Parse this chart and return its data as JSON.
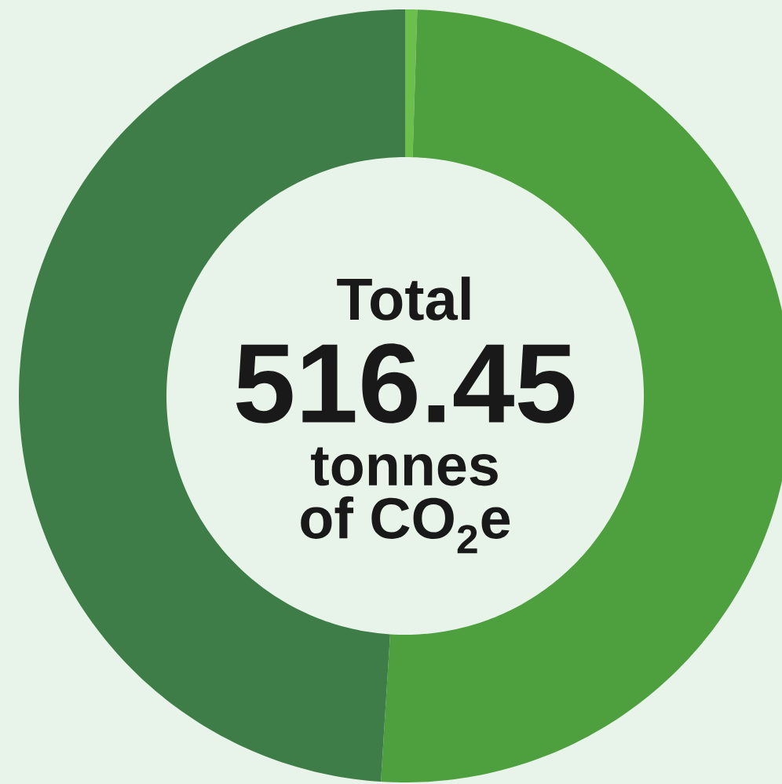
{
  "chart_data": {
    "type": "donut",
    "categories": [
      null,
      null,
      null
    ],
    "values": [
      0.5,
      50.5,
      49
    ],
    "colors": [
      "#6cbf4c",
      "#4e9f3d",
      "#3e7d47"
    ],
    "annotations": [
      "Total",
      "516.45",
      "tonnes",
      "of CO$_{2}$e"
    ]
  }
}
